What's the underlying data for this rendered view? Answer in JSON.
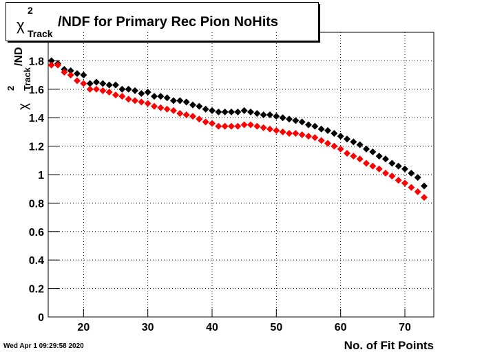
{
  "chart_data": {
    "type": "scatter",
    "title": {
      "symbol": "χ",
      "sup": "2",
      "sub": "Track",
      "text": "/NDF for Primary Rec Pion NoHits"
    },
    "y_label": {
      "symbol": "χ",
      "sup": "2",
      "sub": "Track",
      "text": "/ND"
    },
    "x_label": "No. of Fit Points",
    "timestamp": "Wed Apr  1 09:29:58 2020",
    "x": [
      15,
      16,
      17,
      18,
      19,
      20,
      21,
      22,
      23,
      24,
      25,
      26,
      27,
      28,
      29,
      30,
      31,
      32,
      33,
      34,
      35,
      36,
      37,
      38,
      39,
      40,
      41,
      42,
      43,
      44,
      45,
      46,
      47,
      48,
      49,
      50,
      51,
      52,
      53,
      54,
      55,
      56,
      57,
      58,
      59,
      60,
      61,
      62,
      63,
      64,
      65,
      66,
      67,
      68,
      69,
      70,
      71,
      72,
      73
    ],
    "series": [
      {
        "color": "#000000",
        "values": [
          1.8,
          1.78,
          1.74,
          1.73,
          1.71,
          1.7,
          1.64,
          1.65,
          1.64,
          1.63,
          1.63,
          1.6,
          1.6,
          1.59,
          1.57,
          1.58,
          1.55,
          1.55,
          1.54,
          1.52,
          1.52,
          1.51,
          1.49,
          1.48,
          1.46,
          1.45,
          1.44,
          1.44,
          1.44,
          1.44,
          1.45,
          1.44,
          1.43,
          1.42,
          1.42,
          1.41,
          1.4,
          1.39,
          1.38,
          1.37,
          1.35,
          1.34,
          1.32,
          1.31,
          1.29,
          1.27,
          1.25,
          1.23,
          1.21,
          1.18,
          1.16,
          1.13,
          1.11,
          1.08,
          1.06,
          1.04,
          1.01,
          0.98,
          0.92
        ]
      },
      {
        "color": "#ff0000",
        "values": [
          1.77,
          1.77,
          1.72,
          1.7,
          1.66,
          1.64,
          1.6,
          1.6,
          1.59,
          1.58,
          1.56,
          1.55,
          1.53,
          1.52,
          1.51,
          1.5,
          1.48,
          1.47,
          1.46,
          1.45,
          1.43,
          1.42,
          1.41,
          1.39,
          1.37,
          1.36,
          1.34,
          1.34,
          1.34,
          1.34,
          1.35,
          1.35,
          1.34,
          1.33,
          1.32,
          1.31,
          1.3,
          1.29,
          1.29,
          1.28,
          1.27,
          1.26,
          1.24,
          1.22,
          1.2,
          1.18,
          1.15,
          1.13,
          1.11,
          1.08,
          1.06,
          1.04,
          1.01,
          0.99,
          0.96,
          0.94,
          0.91,
          0.88,
          0.84
        ]
      }
    ],
    "xlim": [
      14.5,
      74.5
    ],
    "ylim": [
      0,
      2
    ],
    "xticks": [
      20,
      30,
      40,
      50,
      60,
      70
    ],
    "yticks": [
      0,
      0.2,
      0.4,
      0.6,
      0.8,
      1,
      1.2,
      1.4,
      1.6,
      1.8
    ],
    "grid": true
  }
}
